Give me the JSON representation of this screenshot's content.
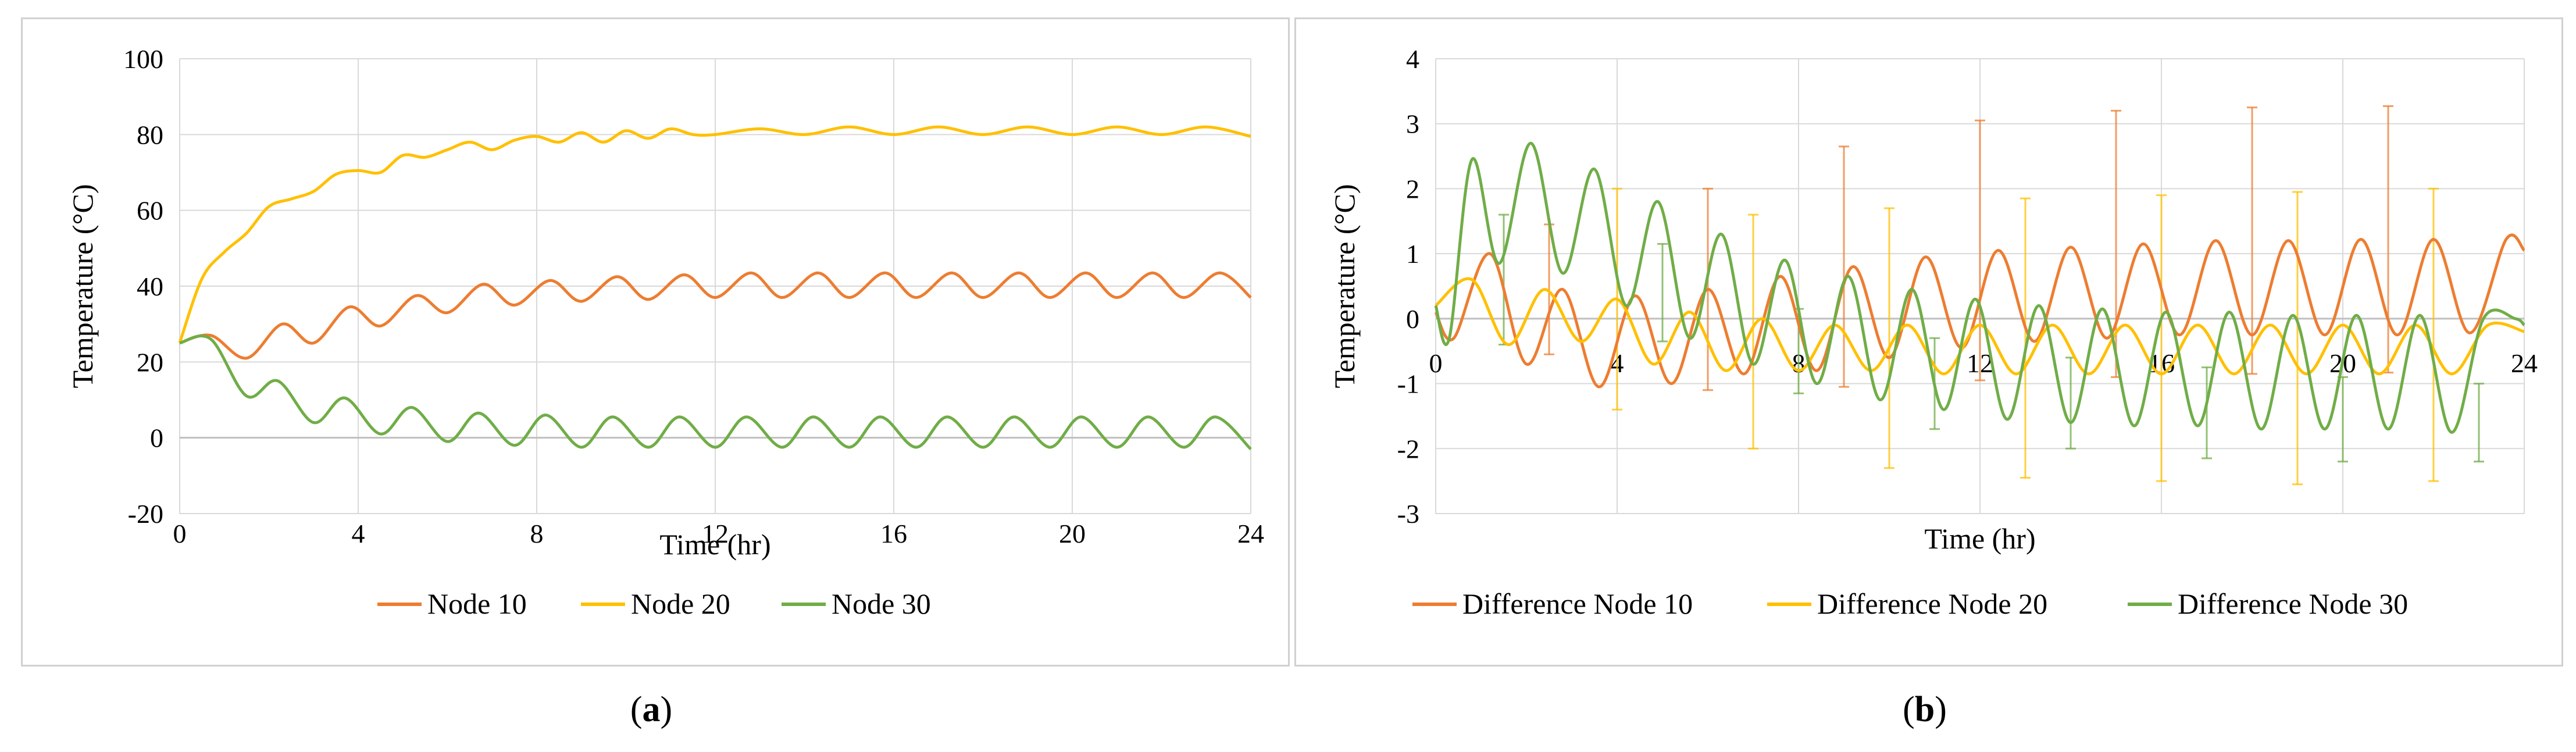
{
  "chart_data": [
    {
      "type": "line",
      "panel_label": "a",
      "xlabel": "Time (hr)",
      "ylabel": "Temperature (°C)",
      "xlim": [
        0,
        24
      ],
      "ylim": [
        -20,
        100
      ],
      "xticks": [
        "0",
        "4",
        "8",
        "12",
        "16",
        "20",
        "24"
      ],
      "yticks": [
        "-20",
        "0",
        "20",
        "40",
        "60",
        "80",
        "100"
      ],
      "grid": true,
      "legend_position": "bottom",
      "series": [
        {
          "name": "Node 10",
          "color": "#ED7D31",
          "x": [
            0,
            0.7,
            1.5,
            2.3,
            3,
            3.8,
            4.5,
            5.3,
            6,
            6.8,
            7.5,
            8.3,
            9,
            9.8,
            10.5,
            11.3,
            12,
            12.8,
            13.5,
            14.3,
            15,
            15.8,
            16.5,
            17.3,
            18,
            18.8,
            19.5,
            20.3,
            21,
            21.8,
            22.5,
            23.3,
            24
          ],
          "values": [
            25,
            27,
            21,
            30,
            25,
            34.5,
            29.5,
            37.5,
            33,
            40.5,
            35,
            41.5,
            36,
            42.5,
            36.5,
            43,
            37,
            43.5,
            37,
            43.5,
            37,
            43.5,
            37,
            43.5,
            37,
            43.5,
            37,
            43.5,
            37,
            43.5,
            37,
            43.5,
            37
          ]
        },
        {
          "name": "Node 20",
          "color": "#FFC000",
          "x": [
            0,
            0.5,
            1,
            1.5,
            2,
            2.5,
            3,
            3.5,
            4,
            4.5,
            5,
            5.5,
            6,
            6.5,
            7,
            7.5,
            8,
            8.5,
            9,
            9.5,
            10,
            10.5,
            11,
            11.5,
            12,
            13,
            14,
            15,
            16,
            17,
            18,
            19,
            20,
            21,
            22,
            23,
            24
          ],
          "values": [
            25,
            42,
            49,
            54,
            61,
            63,
            65,
            69.5,
            70.5,
            70,
            74.5,
            74,
            76,
            78,
            76,
            78.5,
            79.5,
            78,
            80.5,
            78,
            81,
            79,
            81.5,
            80,
            80,
            81.5,
            80,
            82,
            80,
            82,
            80,
            82,
            80,
            82,
            80,
            82,
            79.5
          ]
        },
        {
          "name": "Node 30",
          "color": "#70AD47",
          "x": [
            0,
            0.7,
            1.5,
            2.2,
            3,
            3.7,
            4.5,
            5.2,
            6,
            6.7,
            7.5,
            8.2,
            9,
            9.7,
            10.5,
            11.2,
            12,
            12.7,
            13.5,
            14.2,
            15,
            15.7,
            16.5,
            17.2,
            18,
            18.7,
            19.5,
            20.2,
            21,
            21.7,
            22.5,
            23.2,
            24
          ],
          "values": [
            25,
            26,
            11,
            15,
            4,
            10.5,
            1,
            8,
            -1,
            6.5,
            -2,
            6,
            -2.5,
            5.5,
            -2.5,
            5.5,
            -2.5,
            5.5,
            -2.5,
            5.5,
            -2.5,
            5.5,
            -2.5,
            5.5,
            -2.5,
            5.5,
            -2.5,
            5.5,
            -2.5,
            5.5,
            -2.5,
            5.5,
            -3
          ]
        }
      ]
    },
    {
      "type": "line",
      "panel_label": "b",
      "xlabel": "Time (hr)",
      "ylabel": "Temperature (°C)",
      "xlim": [
        0,
        24
      ],
      "ylim": [
        -3,
        4
      ],
      "xticks": [
        "0",
        "4",
        "8",
        "12",
        "16",
        "20",
        "24"
      ],
      "yticks": [
        "-3",
        "-2",
        "-1",
        "0",
        "1",
        "2",
        "3",
        "4"
      ],
      "grid": true,
      "error_bars": true,
      "legend_position": "bottom",
      "series": [
        {
          "name": "Difference Node 10",
          "color": "#ED7D31",
          "x": [
            0,
            0.4,
            1.2,
            2,
            2.8,
            3.6,
            4.4,
            5.2,
            6,
            6.8,
            7.6,
            8.4,
            9.2,
            10,
            10.8,
            11.6,
            12.4,
            13.2,
            14,
            14.8,
            15.6,
            16.4,
            17.2,
            18,
            18.8,
            19.6,
            20.4,
            21.2,
            22,
            22.8,
            23.6,
            24
          ],
          "values": [
            0.1,
            -0.3,
            1.0,
            -0.7,
            0.45,
            -1.05,
            0.35,
            -1.0,
            0.45,
            -0.85,
            0.65,
            -0.8,
            0.8,
            -0.6,
            0.95,
            -0.45,
            1.05,
            -0.35,
            1.1,
            -0.3,
            1.15,
            -0.25,
            1.2,
            -0.25,
            1.2,
            -0.25,
            1.22,
            -0.25,
            1.22,
            -0.22,
            1.22,
            1.05
          ],
          "errors": [
            {
              "x": 2.5,
              "y": 0.45,
              "err": 1.0
            },
            {
              "x": 6,
              "y": 0.45,
              "err": 1.55
            },
            {
              "x": 9,
              "y": 0.8,
              "err": 1.85
            },
            {
              "x": 12,
              "y": 1.05,
              "err": 2.0
            },
            {
              "x": 15,
              "y": 1.15,
              "err": 2.05
            },
            {
              "x": 18,
              "y": 1.2,
              "err": 2.05
            },
            {
              "x": 21,
              "y": 1.22,
              "err": 2.05
            }
          ]
        },
        {
          "name": "Difference Node 20",
          "color": "#FFC000",
          "x": [
            0,
            0.8,
            1.6,
            2.4,
            3.2,
            4,
            4.8,
            5.6,
            6.4,
            7.2,
            8,
            8.8,
            9.6,
            10.4,
            11.2,
            12,
            12.8,
            13.6,
            14.4,
            15.2,
            16,
            16.8,
            17.6,
            18.4,
            19.2,
            20,
            20.8,
            21.6,
            22.4,
            23.2,
            24
          ],
          "values": [
            0.2,
            0.6,
            -0.4,
            0.45,
            -0.35,
            0.3,
            -0.7,
            0.1,
            -0.8,
            0.0,
            -0.8,
            -0.1,
            -0.8,
            -0.1,
            -0.85,
            -0.1,
            -0.85,
            -0.1,
            -0.85,
            -0.1,
            -0.85,
            -0.1,
            -0.85,
            -0.1,
            -0.85,
            -0.1,
            -0.85,
            -0.1,
            -0.85,
            -0.1,
            -0.2
          ],
          "errors": [
            {
              "x": 4,
              "y": 0.3,
              "err": 1.7
            },
            {
              "x": 7,
              "y": -0.2,
              "err": 1.8
            },
            {
              "x": 10,
              "y": -0.3,
              "err": 2.0
            },
            {
              "x": 13,
              "y": -0.3,
              "err": 2.15
            },
            {
              "x": 16,
              "y": -0.3,
              "err": 2.2
            },
            {
              "x": 19,
              "y": -0.3,
              "err": 2.25
            },
            {
              "x": 22,
              "y": -0.25,
              "err": 2.25
            }
          ]
        },
        {
          "name": "Difference Node 30",
          "color": "#70AD47",
          "x": [
            0,
            0.3,
            0.8,
            1.4,
            2.1,
            2.8,
            3.5,
            4.2,
            4.9,
            5.6,
            6.3,
            7,
            7.7,
            8.4,
            9.1,
            9.8,
            10.5,
            11.2,
            11.9,
            12.6,
            13.3,
            14,
            14.7,
            15.4,
            16.1,
            16.8,
            17.5,
            18.2,
            18.9,
            19.6,
            20.3,
            21,
            21.7,
            22.4,
            23.1,
            23.8,
            24
          ],
          "values": [
            0.2,
            -0.3,
            2.45,
            0.85,
            2.7,
            0.7,
            2.3,
            0.2,
            1.8,
            -0.3,
            1.3,
            -0.7,
            0.9,
            -1.0,
            0.65,
            -1.25,
            0.45,
            -1.4,
            0.3,
            -1.55,
            0.2,
            -1.6,
            0.15,
            -1.65,
            0.1,
            -1.65,
            0.1,
            -1.7,
            0.05,
            -1.7,
            0.05,
            -1.7,
            0.05,
            -1.75,
            0.0,
            0.0,
            -0.1
          ],
          "errors": [
            {
              "x": 1.5,
              "y": 0.6,
              "err": 1.0
            },
            {
              "x": 5,
              "y": 0.4,
              "err": 0.75
            },
            {
              "x": 8,
              "y": -0.5,
              "err": 0.65
            },
            {
              "x": 11,
              "y": -1.0,
              "err": 0.7
            },
            {
              "x": 14,
              "y": -1.3,
              "err": 0.7
            },
            {
              "x": 17,
              "y": -1.45,
              "err": 0.7
            },
            {
              "x": 20,
              "y": -1.55,
              "err": 0.65
            },
            {
              "x": 23,
              "y": -1.6,
              "err": 0.6
            }
          ]
        }
      ]
    }
  ],
  "labels": {
    "a": "a",
    "b": "b"
  }
}
